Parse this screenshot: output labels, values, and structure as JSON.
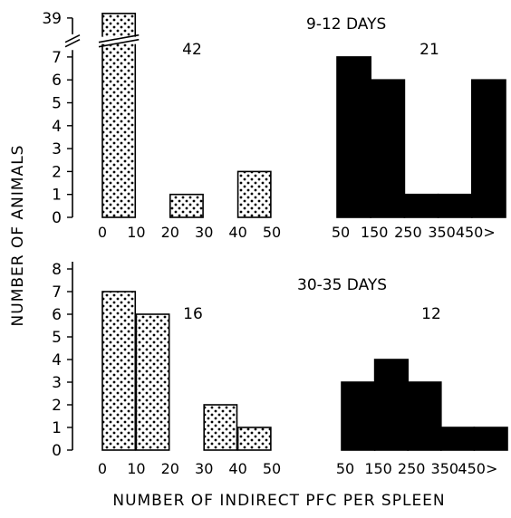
{
  "figure": {
    "ylabel": "NUMBER OF ANIMALS",
    "xlabel": "NUMBER OF INDIRECT PFC PER SPLEEN"
  },
  "chart_data": [
    {
      "type": "bar",
      "panel": "top-left",
      "categories": [
        "0-10",
        "10-20",
        "20-30",
        "30-40",
        "40-50"
      ],
      "x_ticks": [
        "0",
        "10",
        "20",
        "30",
        "40",
        "50"
      ],
      "values": [
        39,
        0,
        1,
        0,
        2
      ],
      "y_ticks": [
        "0",
        "1",
        "2",
        "3",
        "4",
        "5",
        "6",
        "7",
        "39"
      ],
      "ylim": [
        0,
        7
      ],
      "axis_break": true,
      "count_label": "42",
      "pattern": "stippled"
    },
    {
      "type": "bar",
      "panel": "top-right",
      "title": "9-12 DAYS",
      "categories": [
        "50",
        "150",
        "250",
        "350",
        "450>"
      ],
      "x_ticks": [
        "50",
        "150",
        "250",
        "350",
        "450>"
      ],
      "values": [
        7,
        6,
        1,
        1,
        6
      ],
      "ylim": [
        0,
        7
      ],
      "count_label": "21",
      "pattern": "solid"
    },
    {
      "type": "bar",
      "panel": "bottom-left",
      "categories": [
        "0-10",
        "10-20",
        "20-30",
        "30-40",
        "40-50"
      ],
      "x_ticks": [
        "0",
        "10",
        "20",
        "30",
        "40",
        "50"
      ],
      "values": [
        7,
        6,
        0,
        2,
        1
      ],
      "y_ticks": [
        "0",
        "1",
        "2",
        "3",
        "4",
        "5",
        "6",
        "7",
        "8"
      ],
      "ylim": [
        0,
        8
      ],
      "count_label": "16",
      "pattern": "stippled"
    },
    {
      "type": "bar",
      "panel": "bottom-right",
      "title": "30-35 DAYS",
      "categories": [
        "50",
        "150",
        "250",
        "350",
        "450>"
      ],
      "x_ticks": [
        "50",
        "150",
        "250",
        "350",
        "450>"
      ],
      "values": [
        3,
        4,
        3,
        1,
        1
      ],
      "ylim": [
        0,
        8
      ],
      "count_label": "12",
      "pattern": "solid"
    }
  ]
}
